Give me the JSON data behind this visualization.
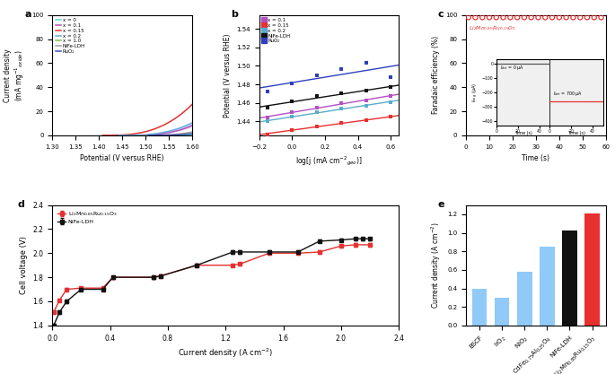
{
  "panel_a": {
    "xlabel": "Potential (V versus RHE)",
    "ylabel": "Current density\n(mA mg$^{-1}$$_{oxide}$)",
    "xlim": [
      1.3,
      1.6
    ],
    "ylim": [
      0,
      100
    ],
    "lines": [
      {
        "label": "x = 0",
        "color": "#5ecfcf",
        "onset": 1.58,
        "k": 3000,
        "shade": false
      },
      {
        "label": "x = 0.1",
        "color": "#b44fc4",
        "onset": 1.465,
        "k": 2200,
        "shade": true,
        "shade_alpha": 0.25
      },
      {
        "label": "x = 0.15",
        "color": "#e83030",
        "onset": 1.413,
        "k": 2800,
        "shade": false
      },
      {
        "label": "x = 0.2",
        "color": "#62aadd",
        "onset": 1.448,
        "k": 2000,
        "shade": true,
        "shade_alpha": 0.22
      },
      {
        "label": "x = 1.0",
        "color": "#7abf50",
        "onset": 1.62,
        "k": 3000,
        "shade": false
      },
      {
        "label": "NiFe-LDH",
        "color": "#9e9e9e",
        "onset": 1.497,
        "k": 1600,
        "shade": true,
        "shade_alpha": 0.2
      },
      {
        "label": "RuO₂",
        "color": "#3f4faf",
        "onset": 1.512,
        "k": 1200,
        "shade": true,
        "shade_alpha": 0.2
      }
    ]
  },
  "panel_b": {
    "xlabel": "log[j (mA cm$^{-2}$$_{geo}$)]",
    "ylabel": "Potential (V versus RHE)",
    "xlim": [
      -0.2,
      0.65
    ],
    "ylim": [
      1.425,
      1.555
    ],
    "series": [
      {
        "label": "x = 0.1",
        "color": "#b44fc4",
        "marker_color": "#b44fc4",
        "x": [
          -0.15,
          0.0,
          0.15,
          0.3,
          0.45,
          0.6
        ],
        "y": [
          1.444,
          1.45,
          1.455,
          1.46,
          1.463,
          1.467
        ]
      },
      {
        "label": "x = 0.15",
        "color": "#e83030",
        "marker_color": "#e83030",
        "x": [
          -0.15,
          0.0,
          0.15,
          0.3,
          0.45,
          0.6
        ],
        "y": [
          1.426,
          1.431,
          1.435,
          1.438,
          1.441,
          1.445
        ]
      },
      {
        "label": "x = 0.2",
        "color": "#5aaccc",
        "marker_color": "#5aaccc",
        "x": [
          -0.15,
          0.0,
          0.15,
          0.3,
          0.45,
          0.6
        ],
        "y": [
          1.44,
          1.445,
          1.45,
          1.454,
          1.457,
          1.461
        ]
      },
      {
        "label": "NiFe-LDH",
        "color": "#111111",
        "marker_color": "#111111",
        "x": [
          -0.15,
          0.0,
          0.15,
          0.3,
          0.45,
          0.6
        ],
        "y": [
          1.455,
          1.462,
          1.467,
          1.47,
          1.473,
          1.477
        ]
      },
      {
        "label": "RuO₂",
        "color": "#3040bb",
        "marker_color": "#3040bb",
        "x": [
          -0.15,
          0.0,
          0.15,
          0.3,
          0.45,
          0.6
        ],
        "y": [
          1.472,
          1.481,
          1.49,
          1.497,
          1.503,
          1.488
        ]
      }
    ]
  },
  "panel_c": {
    "xlabel": "Time (s)",
    "ylabel": "Faradaic efficiency (%)",
    "xlim": [
      0,
      60
    ],
    "ylim": [
      0,
      100
    ],
    "scatter_color": "#e83030",
    "scatter_x": [
      1,
      4,
      7,
      10,
      13,
      16,
      19,
      22,
      25,
      28,
      31,
      34,
      37,
      40,
      43,
      46,
      49,
      52,
      55,
      58
    ],
    "scatter_y": 98,
    "label": "Li$_2$Mn$_{0.85}$Ru$_{0.15}$O$_3$"
  },
  "panel_d": {
    "xlabel": "Current density (A cm$^{-2}$)",
    "ylabel": "Cell voltage (V)",
    "xlim": [
      0,
      2.4
    ],
    "ylim": [
      1.4,
      2.4
    ],
    "red_x": [
      0.01,
      0.05,
      0.1,
      0.2,
      0.35,
      0.42,
      0.7,
      0.75,
      1.0,
      1.25,
      1.3,
      1.5,
      1.7,
      1.85,
      2.0,
      2.1,
      2.2
    ],
    "red_y": [
      1.51,
      1.61,
      1.7,
      1.71,
      1.71,
      1.8,
      1.8,
      1.81,
      1.9,
      1.9,
      1.91,
      2.0,
      2.0,
      2.01,
      2.06,
      2.07,
      2.07
    ],
    "black_x": [
      0.01,
      0.05,
      0.1,
      0.2,
      0.35,
      0.42,
      0.7,
      0.75,
      1.0,
      1.25,
      1.3,
      1.5,
      1.7,
      1.85,
      2.0,
      2.1,
      2.15,
      2.2
    ],
    "black_y": [
      1.4,
      1.51,
      1.6,
      1.7,
      1.7,
      1.8,
      1.8,
      1.81,
      1.9,
      2.01,
      2.01,
      2.01,
      2.01,
      2.1,
      2.11,
      2.12,
      2.12,
      2.12
    ],
    "red_label": "Li$_2$Mn$_{0.85}$Ru$_{0.15}$O$_3$",
    "black_label": "NiFe-LDH"
  },
  "panel_e": {
    "ylabel": "Current density (A cm$^{-2}$)",
    "ylim": [
      0,
      1.3
    ],
    "values": [
      0.4,
      0.3,
      0.58,
      0.85,
      1.03,
      1.21
    ],
    "colors": [
      "#90caf9",
      "#90caf9",
      "#90caf9",
      "#90caf9",
      "#111111",
      "#e83030"
    ],
    "cat_labels": [
      "BSCF",
      "IrO$_2$",
      "NiO$_2$",
      "CdFe$_{0.75}$Al$_{0.25}$O$_4$",
      "NiFe-LDH",
      "Li$_2$Mn$_{0.85}$Ru$_{0.15}$O$_3$"
    ]
  }
}
